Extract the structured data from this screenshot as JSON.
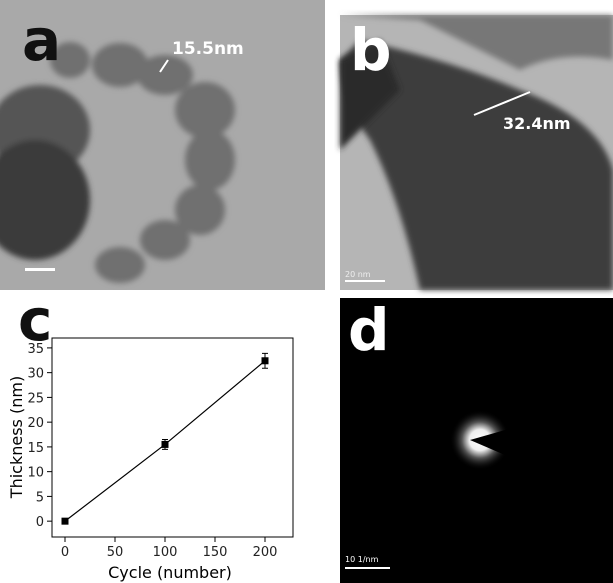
{
  "panels": {
    "a": {
      "label": "a",
      "annotation": "15.5nm"
    },
    "b": {
      "label": "b",
      "annotation": "32.4nm",
      "scale_bar": "20 nm"
    },
    "c": {
      "label": "c"
    },
    "d": {
      "label": "d",
      "scale_bar": "10 1/nm"
    }
  },
  "chart_data": {
    "type": "line",
    "x_label": "Cycle (number)",
    "y_label": "Thickness (nm)",
    "x": [
      0,
      100,
      200
    ],
    "series": [
      {
        "color": "#000000",
        "values": [
          0,
          15.5,
          32.4
        ],
        "errors": [
          0.3,
          1,
          1.5
        ]
      }
    ],
    "xlim": [
      -13,
      228
    ],
    "xticks": [
      0,
      50,
      100,
      150,
      200
    ],
    "ylim": [
      -3.2,
      37
    ],
    "yticks": [
      0,
      5,
      10,
      15,
      20,
      25,
      30,
      35
    ]
  }
}
